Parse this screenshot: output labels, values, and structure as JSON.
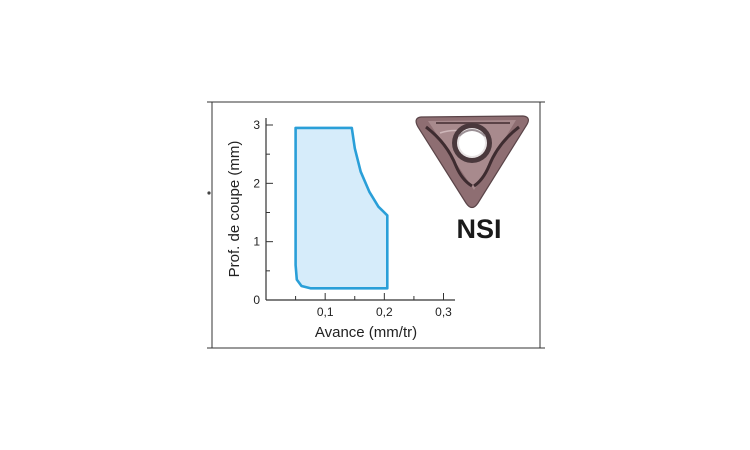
{
  "insert": {
    "name": "NSI",
    "image_icon": "triangular-cutting-insert-icon"
  },
  "chart_data": {
    "type": "area",
    "title": "",
    "xlabel": "Avance (mm/tr)",
    "ylabel": "Prof. de coupe (mm)",
    "xlim": [
      0,
      0.3
    ],
    "ylim": [
      0,
      3
    ],
    "x_ticks": [
      0.1,
      0.2,
      0.3
    ],
    "x_tick_labels": [
      "0,1",
      "0,2",
      "0,3"
    ],
    "y_ticks": [
      0,
      1,
      2,
      3
    ],
    "y_tick_labels": [
      "0",
      "1",
      "2",
      "3"
    ],
    "grid": false,
    "region_boundary": [
      {
        "x": 0.05,
        "y": 0.6
      },
      {
        "x": 0.05,
        "y": 2.95
      },
      {
        "x": 0.145,
        "y": 2.95
      },
      {
        "x": 0.15,
        "y": 2.6
      },
      {
        "x": 0.16,
        "y": 2.2
      },
      {
        "x": 0.175,
        "y": 1.85
      },
      {
        "x": 0.19,
        "y": 1.6
      },
      {
        "x": 0.205,
        "y": 1.45
      },
      {
        "x": 0.205,
        "y": 0.2
      },
      {
        "x": 0.09,
        "y": 0.2
      },
      {
        "x": 0.075,
        "y": 0.2
      },
      {
        "x": 0.06,
        "y": 0.24
      },
      {
        "x": 0.052,
        "y": 0.35
      }
    ],
    "fill_color": "#d6ecfa",
    "line_color": "#2a9fd8"
  }
}
